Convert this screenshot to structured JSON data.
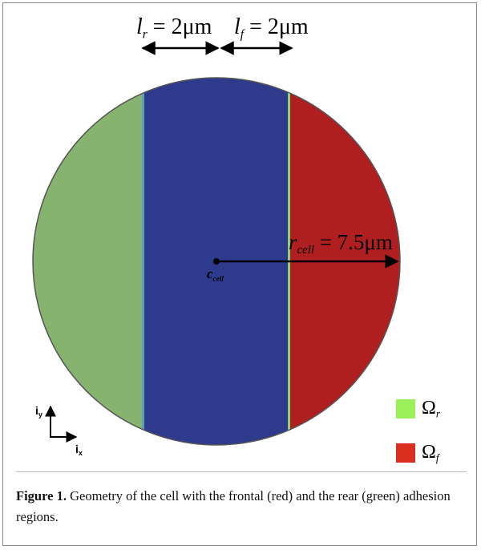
{
  "figure": {
    "width_label": {
      "rear_symbol": "l",
      "rear_sub": "r",
      "rear_value": " = 2μm",
      "front_symbol": "l",
      "front_sub": "f",
      "front_value": " = 2μm"
    },
    "radius_label": {
      "symbol": "r",
      "sub": "cell",
      "value": " = 7.5μm"
    },
    "center_label": {
      "symbol": "c",
      "sub": "cell"
    },
    "axes": {
      "y_label": "i",
      "y_sub": "y",
      "x_label": "i",
      "x_sub": "x"
    },
    "legend": [
      {
        "symbol": "Ω",
        "sub": "r",
        "color": "#9cf05a"
      },
      {
        "symbol": "Ω",
        "sub": "f",
        "color": "#d7301f"
      }
    ],
    "colors": {
      "rear_region": "#86b36e",
      "middle_region": "#2e3a8c",
      "front_region": "#b01f1f"
    }
  },
  "caption": {
    "label": "Figure 1.",
    "text": " Geometry of the cell with the frontal (red) and the rear (green) adhesion regions."
  }
}
